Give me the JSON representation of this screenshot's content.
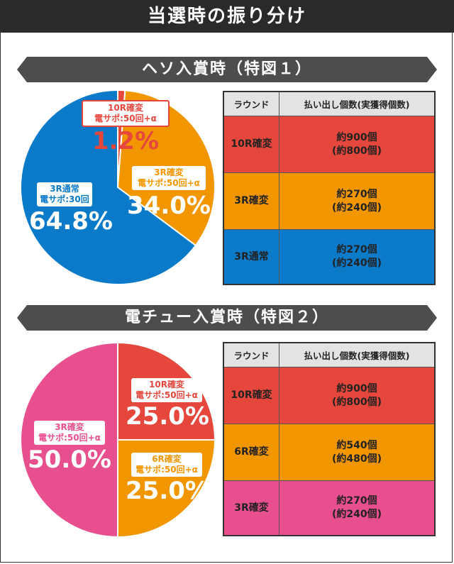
{
  "title": "当選時の振り分け",
  "sections": [
    {
      "heading": "ヘソ入賞時（特図１）",
      "chart_data": {
        "type": "pie",
        "slices": [
          {
            "name": "10R確変",
            "sub": "電サポ:50回+α",
            "value": 1.2,
            "label": "1.2%",
            "color": "#e5473d"
          },
          {
            "name": "3R確変",
            "sub": "電サポ:50回+α",
            "value": 34.0,
            "label": "34.0%",
            "color": "#f29600"
          },
          {
            "name": "3R通常",
            "sub": "電サポ:30回",
            "value": 64.8,
            "label": "64.8%",
            "color": "#0a7ac9"
          }
        ]
      },
      "table": {
        "headers": [
          "ラウンド",
          "払い出し個数(実獲得個数)"
        ],
        "rows": [
          {
            "round": "10R確変",
            "payout": "約900個",
            "actual": "(約800個)",
            "color": "#e5473d"
          },
          {
            "round": "3R確変",
            "payout": "約270個",
            "actual": "(約240個)",
            "color": "#f29600"
          },
          {
            "round": "3R通常",
            "payout": "約270個",
            "actual": "(約240個)",
            "color": "#0a7ac9"
          }
        ]
      }
    },
    {
      "heading": "電チュー入賞時（特図２）",
      "chart_data": {
        "type": "pie",
        "slices": [
          {
            "name": "10R確変",
            "sub": "電サポ:50回+α",
            "value": 25.0,
            "label": "25.0%",
            "color": "#e5473d"
          },
          {
            "name": "6R確変",
            "sub": "電サポ:50回+α",
            "value": 25.0,
            "label": "25.0%",
            "color": "#f29600"
          },
          {
            "name": "3R確変",
            "sub": "電サポ:50回+α",
            "value": 50.0,
            "label": "50.0%",
            "color": "#e84f8e"
          }
        ]
      },
      "table": {
        "headers": [
          "ラウンド",
          "払い出し個数(実獲得個数)"
        ],
        "rows": [
          {
            "round": "10R確変",
            "payout": "約900個",
            "actual": "(約800個)",
            "color": "#e5473d"
          },
          {
            "round": "6R確変",
            "payout": "約540個",
            "actual": "(約480個)",
            "color": "#f29600"
          },
          {
            "round": "3R確変",
            "payout": "約270個",
            "actual": "(約240個)",
            "color": "#e84f8e"
          }
        ]
      }
    }
  ]
}
